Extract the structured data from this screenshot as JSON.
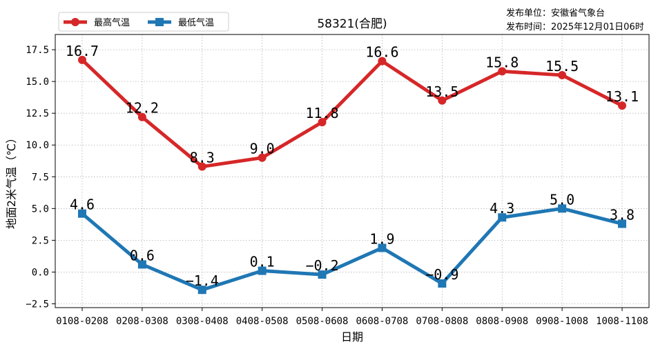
{
  "chart_data": {
    "type": "line",
    "title": "58321(合肥)",
    "xlabel": "日期",
    "ylabel": "地面2米气温（℃）",
    "categories": [
      "0108-0208",
      "0208-0308",
      "0308-0408",
      "0408-0508",
      "0508-0608",
      "0608-0708",
      "0708-0808",
      "0808-0908",
      "0908-1008",
      "1008-1108"
    ],
    "series": [
      {
        "name": "最高气温",
        "color": "#d62728",
        "marker": "circle",
        "values": [
          16.7,
          12.2,
          8.3,
          9.0,
          11.8,
          16.6,
          13.5,
          15.8,
          15.5,
          13.1
        ]
      },
      {
        "name": "最低气温",
        "color": "#1f77b4",
        "marker": "square",
        "values": [
          4.6,
          0.6,
          -1.4,
          0.1,
          -0.2,
          1.9,
          -0.9,
          4.3,
          5.0,
          3.8
        ]
      }
    ],
    "ylim": [
      -2.8,
      18.7
    ],
    "yticks": [
      "−2.5",
      "0.0",
      "2.5",
      "5.0",
      "7.5",
      "10.0",
      "12.5",
      "15.0",
      "17.5"
    ],
    "data_labels": true,
    "grid": true,
    "legend_position": "top-left"
  },
  "publisher": {
    "unit": "发布单位：安徽省气象台",
    "time": "发布时间：2025年12月01日06时"
  }
}
